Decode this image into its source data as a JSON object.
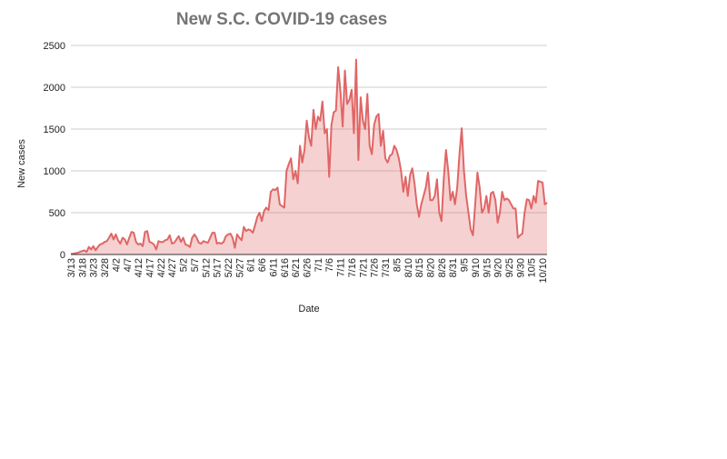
{
  "chart_data": {
    "type": "area",
    "title": "New S.C. COVID-19 cases",
    "y_label": "New cases",
    "x_label": "Date",
    "color": "#e06666",
    "ylim": [
      0,
      2500
    ],
    "yticks": [
      0,
      500,
      1000,
      1500,
      2000,
      2500
    ],
    "grid": true,
    "categories": [
      "3/13",
      null,
      null,
      null,
      null,
      "3/18",
      null,
      null,
      null,
      null,
      "3/23",
      null,
      null,
      null,
      null,
      "3/28",
      null,
      null,
      null,
      null,
      "4/2",
      null,
      null,
      null,
      null,
      "4/7",
      null,
      null,
      null,
      null,
      "4/12",
      null,
      null,
      null,
      null,
      "4/17",
      null,
      null,
      null,
      null,
      "4/22",
      null,
      null,
      null,
      null,
      "4/27",
      null,
      null,
      null,
      null,
      "5/2",
      null,
      null,
      null,
      null,
      "5/7",
      null,
      null,
      null,
      null,
      "5/12",
      null,
      null,
      null,
      null,
      "5/17",
      null,
      null,
      null,
      null,
      "5/22",
      null,
      null,
      null,
      null,
      "5/27",
      null,
      null,
      null,
      null,
      "6/1",
      null,
      null,
      null,
      null,
      "6/6",
      null,
      null,
      null,
      null,
      "6/11",
      null,
      null,
      null,
      null,
      "6/16",
      null,
      null,
      null,
      null,
      "6/21",
      null,
      null,
      null,
      null,
      "6/26",
      null,
      null,
      null,
      null,
      "7/1",
      null,
      null,
      null,
      null,
      "7/6",
      null,
      null,
      null,
      null,
      "7/11",
      null,
      null,
      null,
      null,
      "7/16",
      null,
      null,
      null,
      null,
      "7/21",
      null,
      null,
      null,
      null,
      "7/26",
      null,
      null,
      null,
      null,
      "7/31",
      null,
      null,
      null,
      null,
      "8/5",
      null,
      null,
      null,
      null,
      "8/10",
      null,
      null,
      null,
      null,
      "8/15",
      null,
      null,
      null,
      null,
      "8/20",
      null,
      null,
      null,
      null,
      "8/26",
      null,
      null,
      null,
      null,
      "8/31",
      null,
      null,
      null,
      null,
      "9/5",
      null,
      null,
      null,
      null,
      "9/10",
      null,
      null,
      null,
      null,
      "9/15",
      null,
      null,
      null,
      null,
      "9/20",
      null,
      null,
      null,
      null,
      "9/25",
      null,
      null,
      null,
      null,
      "9/30",
      null,
      null,
      null,
      null,
      "10/5",
      null,
      null,
      null,
      null,
      "10/10",
      null,
      null
    ],
    "values": [
      5,
      10,
      15,
      20,
      30,
      40,
      50,
      30,
      90,
      60,
      100,
      50,
      90,
      120,
      130,
      150,
      160,
      200,
      250,
      180,
      240,
      170,
      130,
      200,
      180,
      120,
      200,
      270,
      260,
      150,
      120,
      130,
      100,
      270,
      280,
      150,
      140,
      120,
      60,
      160,
      150,
      150,
      170,
      180,
      230,
      130,
      140,
      180,
      220,
      150,
      200,
      120,
      110,
      90,
      200,
      240,
      200,
      140,
      130,
      160,
      150,
      140,
      200,
      260,
      260,
      130,
      140,
      130,
      150,
      220,
      240,
      250,
      200,
      80,
      240,
      200,
      170,
      330,
      280,
      300,
      290,
      260,
      350,
      450,
      500,
      400,
      520,
      560,
      530,
      750,
      780,
      770,
      800,
      600,
      580,
      560,
      1000,
      1080,
      1150,
      900,
      1000,
      850,
      1300,
      1100,
      1250,
      1600,
      1400,
      1300,
      1730,
      1500,
      1650,
      1600,
      1830,
      1450,
      1500,
      930,
      1550,
      1700,
      1720,
      2240,
      1950,
      1530,
      2200,
      1800,
      1850,
      1970,
      1450,
      2330,
      1130,
      1880,
      1600,
      1500,
      1920,
      1300,
      1200,
      1550,
      1650,
      1680,
      1300,
      1480,
      1150,
      1100,
      1180,
      1200,
      1300,
      1250,
      1150,
      1000,
      750,
      930,
      700,
      950,
      1030,
      850,
      600,
      450,
      600,
      700,
      800,
      980,
      650,
      650,
      700,
      900,
      500,
      400,
      900,
      1250,
      1000,
      650,
      750,
      600,
      800,
      1200,
      1510,
      1000,
      700,
      500,
      300,
      230,
      600,
      980,
      800,
      500,
      550,
      700,
      500,
      730,
      750,
      650,
      380,
      500,
      750,
      650,
      670,
      650,
      600,
      550,
      550,
      200,
      230,
      250,
      500,
      660,
      650,
      550,
      700,
      620,
      880,
      870,
      860,
      600,
      620
    ]
  }
}
